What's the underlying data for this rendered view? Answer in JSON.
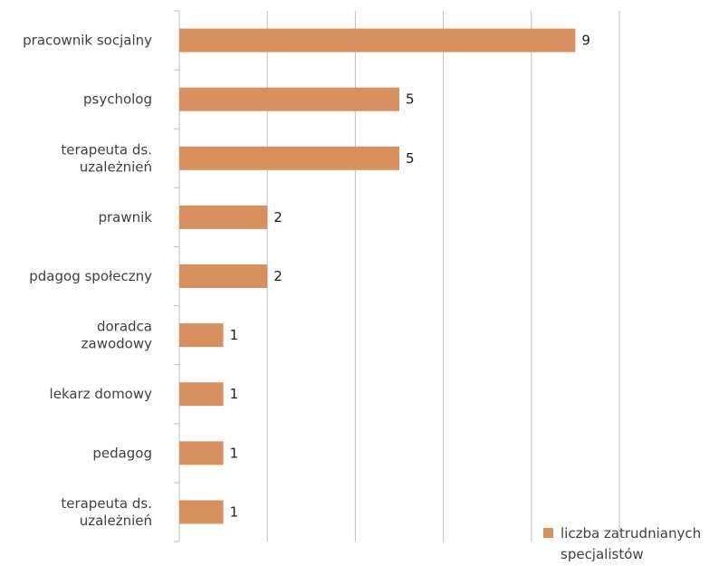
{
  "chart_data": {
    "type": "bar",
    "orientation": "horizontal",
    "categories": [
      "pracownik socjalny",
      "psycholog",
      "terapeuta ds. uzależnień",
      "prawnik",
      "pdagog społeczny",
      "doradca zawodowy",
      "lekarz domowy",
      "pedagog",
      "terapeuta ds. uzależnień"
    ],
    "category_lines": [
      [
        "pracownik socjalny"
      ],
      [
        "psycholog"
      ],
      [
        "terapeuta ds.",
        "uzależnień"
      ],
      [
        "prawnik"
      ],
      [
        "pdagog społeczny"
      ],
      [
        "doradca",
        "zawodowy"
      ],
      [
        "lekarz domowy"
      ],
      [
        "pedagog"
      ],
      [
        "terapeuta ds.",
        "uzależnień"
      ]
    ],
    "series": [
      {
        "name": "liczba zatrudnianych specjalistów",
        "values": [
          9,
          5,
          5,
          2,
          2,
          1,
          1,
          1,
          1
        ]
      }
    ],
    "data_labels": [
      "9",
      "5",
      "5",
      "2",
      "2",
      "1",
      "1",
      "1",
      "1"
    ],
    "xlim": [
      0,
      10
    ],
    "grid": true,
    "legend_position": "bottom-right",
    "legend_lines": [
      "liczba zatrudnianych",
      "specjalistów"
    ],
    "colors": {
      "bar": "#D9905F",
      "grid": "#bfbfbf",
      "axis": "#bfbfbf"
    }
  }
}
